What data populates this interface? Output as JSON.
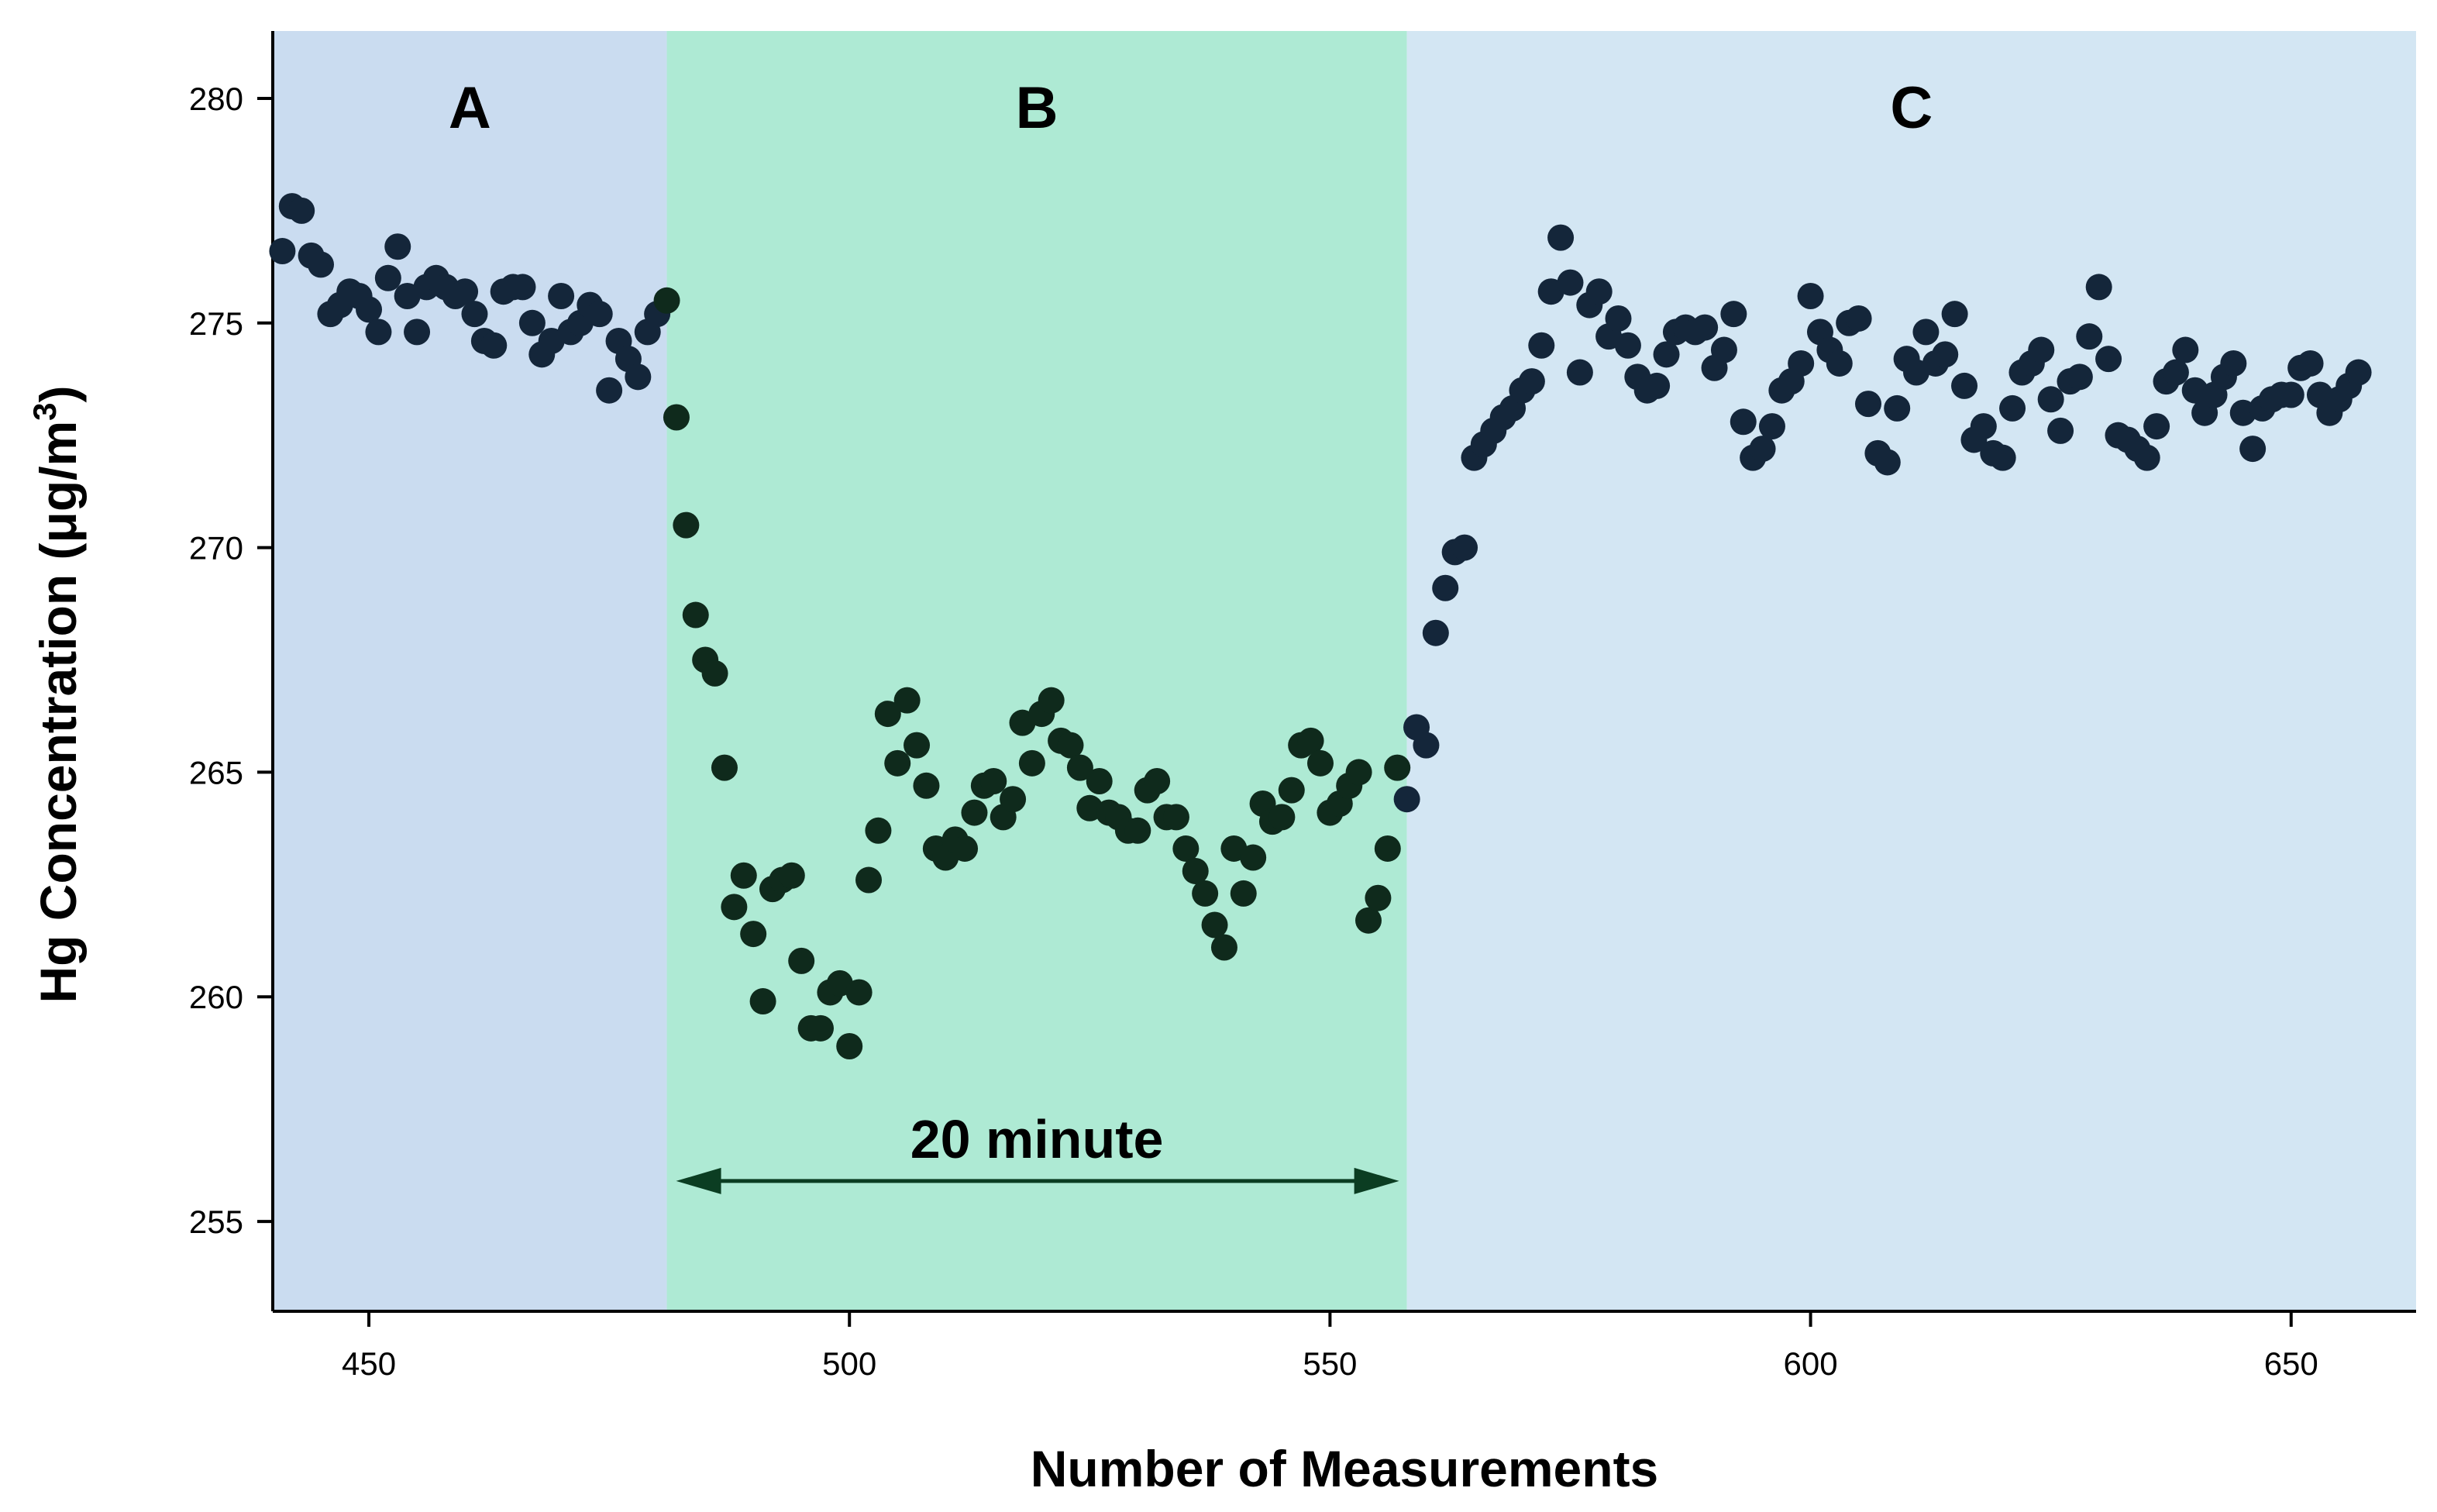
{
  "chart_data": {
    "type": "scatter",
    "title": "",
    "xlabel": "Number of Measurements",
    "ylabel_main": "Hg Concentration (μg/m",
    "ylabel_sup": "3",
    "ylabel_close": ")",
    "xlim": [
      440,
      663
    ],
    "ylim": [
      253,
      281.5
    ],
    "xticks": [
      450,
      500,
      550,
      600,
      650
    ],
    "yticks": [
      255,
      260,
      265,
      270,
      275,
      280
    ],
    "grid": false,
    "regions": [
      {
        "label": "A",
        "x_start": 440,
        "x_end": 481,
        "color": "#cadcf0"
      },
      {
        "label": "B",
        "x_start": 481,
        "x_end": 558,
        "color": "#aeead4"
      },
      {
        "label": "C",
        "x_start": 558,
        "x_end": 663,
        "color": "#d3e6f3"
      }
    ],
    "annotation": {
      "text": "20 minute",
      "x_start": 481,
      "x_end": 558,
      "y": 255.9
    },
    "series": [
      {
        "name": "Region A",
        "color": "#14263a",
        "points": [
          [
            441,
            276.6
          ],
          [
            442,
            277.6
          ],
          [
            443,
            277.5
          ],
          [
            444,
            276.5
          ],
          [
            445,
            276.3
          ],
          [
            446,
            275.2
          ],
          [
            447,
            275.4
          ],
          [
            448,
            275.7
          ],
          [
            449,
            275.6
          ],
          [
            450,
            275.3
          ],
          [
            451,
            274.8
          ],
          [
            452,
            276.0
          ],
          [
            453,
            276.7
          ],
          [
            454,
            275.6
          ],
          [
            455,
            274.8
          ],
          [
            456,
            275.8
          ],
          [
            457,
            276.0
          ],
          [
            458,
            275.8
          ],
          [
            459,
            275.6
          ],
          [
            460,
            275.7
          ],
          [
            461,
            275.2
          ],
          [
            462,
            274.6
          ],
          [
            463,
            274.5
          ],
          [
            464,
            275.7
          ],
          [
            465,
            275.8
          ],
          [
            466,
            275.8
          ],
          [
            467,
            275.0
          ],
          [
            468,
            274.3
          ],
          [
            469,
            274.6
          ],
          [
            470,
            275.6
          ],
          [
            471,
            274.8
          ],
          [
            472,
            275.0
          ],
          [
            473,
            275.4
          ],
          [
            474,
            275.2
          ],
          [
            475,
            273.5
          ],
          [
            476,
            274.6
          ],
          [
            477,
            274.2
          ],
          [
            478,
            273.8
          ],
          [
            479,
            274.8
          ],
          [
            480,
            275.2
          ]
        ]
      },
      {
        "name": "Region B",
        "color": "#0f2a1c",
        "points": [
          [
            481,
            275.5
          ],
          [
            482,
            272.9
          ],
          [
            483,
            270.5
          ],
          [
            484,
            268.5
          ],
          [
            485,
            267.5
          ],
          [
            486,
            267.2
          ],
          [
            487,
            265.1
          ],
          [
            488,
            262.0
          ],
          [
            489,
            262.7
          ],
          [
            490,
            261.4
          ],
          [
            491,
            259.9
          ],
          [
            492,
            262.4
          ],
          [
            493,
            262.6
          ],
          [
            494,
            262.7
          ],
          [
            495,
            260.8
          ],
          [
            496,
            259.3
          ],
          [
            497,
            259.3
          ],
          [
            498,
            260.1
          ],
          [
            499,
            260.3
          ],
          [
            500,
            258.9
          ],
          [
            501,
            260.1
          ],
          [
            502,
            262.6
          ],
          [
            503,
            263.7
          ],
          [
            504,
            266.3
          ],
          [
            505,
            265.2
          ],
          [
            506,
            266.6
          ],
          [
            507,
            265.6
          ],
          [
            508,
            264.7
          ],
          [
            509,
            263.3
          ],
          [
            510,
            263.1
          ],
          [
            511,
            263.5
          ],
          [
            512,
            263.3
          ],
          [
            513,
            264.1
          ],
          [
            514,
            264.7
          ],
          [
            515,
            264.8
          ],
          [
            516,
            264.0
          ],
          [
            517,
            264.4
          ],
          [
            518,
            266.1
          ],
          [
            519,
            265.2
          ],
          [
            520,
            266.3
          ],
          [
            521,
            266.6
          ],
          [
            522,
            265.7
          ],
          [
            523,
            265.6
          ],
          [
            524,
            265.1
          ],
          [
            525,
            264.2
          ],
          [
            526,
            264.8
          ],
          [
            527,
            264.1
          ],
          [
            528,
            264.0
          ],
          [
            529,
            263.7
          ],
          [
            530,
            263.7
          ],
          [
            531,
            264.6
          ],
          [
            532,
            264.8
          ],
          [
            533,
            264.0
          ],
          [
            534,
            264.0
          ],
          [
            535,
            263.3
          ],
          [
            536,
            262.8
          ],
          [
            537,
            262.3
          ],
          [
            538,
            261.6
          ],
          [
            539,
            261.1
          ],
          [
            540,
            263.3
          ],
          [
            541,
            262.3
          ],
          [
            542,
            263.1
          ],
          [
            543,
            264.3
          ],
          [
            544,
            263.9
          ],
          [
            545,
            264.0
          ],
          [
            546,
            264.6
          ],
          [
            547,
            265.6
          ],
          [
            548,
            265.7
          ],
          [
            549,
            265.2
          ],
          [
            550,
            264.1
          ],
          [
            551,
            264.3
          ],
          [
            552,
            264.7
          ],
          [
            553,
            265.0
          ],
          [
            554,
            261.7
          ],
          [
            555,
            262.2
          ],
          [
            556,
            263.3
          ],
          [
            557,
            265.1
          ]
        ]
      },
      {
        "name": "Region C",
        "color": "#14263a",
        "points": [
          [
            558,
            264.4
          ],
          [
            559,
            266.0
          ],
          [
            560,
            265.6
          ],
          [
            561,
            268.1
          ],
          [
            562,
            269.1
          ],
          [
            563,
            269.9
          ],
          [
            564,
            270.0
          ],
          [
            565,
            272.0
          ],
          [
            566,
            272.3
          ],
          [
            567,
            272.6
          ],
          [
            568,
            272.9
          ],
          [
            569,
            273.1
          ],
          [
            570,
            273.5
          ],
          [
            571,
            273.7
          ],
          [
            572,
            274.5
          ],
          [
            573,
            275.7
          ],
          [
            574,
            276.9
          ],
          [
            575,
            275.9
          ],
          [
            576,
            273.9
          ],
          [
            577,
            275.4
          ],
          [
            578,
            275.7
          ],
          [
            579,
            274.7
          ],
          [
            580,
            275.1
          ],
          [
            581,
            274.5
          ],
          [
            582,
            273.8
          ],
          [
            583,
            273.5
          ],
          [
            584,
            273.6
          ],
          [
            585,
            274.3
          ],
          [
            586,
            274.8
          ],
          [
            587,
            274.9
          ],
          [
            588,
            274.8
          ],
          [
            589,
            274.9
          ],
          [
            590,
            274.0
          ],
          [
            591,
            274.4
          ],
          [
            592,
            275.2
          ],
          [
            593,
            272.8
          ],
          [
            594,
            272.0
          ],
          [
            595,
            272.2
          ],
          [
            596,
            272.7
          ],
          [
            597,
            273.5
          ],
          [
            598,
            273.7
          ],
          [
            599,
            274.1
          ],
          [
            600,
            275.6
          ],
          [
            601,
            274.8
          ],
          [
            602,
            274.4
          ],
          [
            603,
            274.1
          ],
          [
            604,
            275.0
          ],
          [
            605,
            275.1
          ],
          [
            606,
            273.2
          ],
          [
            607,
            272.1
          ],
          [
            608,
            271.9
          ],
          [
            609,
            273.1
          ],
          [
            610,
            274.2
          ],
          [
            611,
            273.9
          ],
          [
            612,
            274.8
          ],
          [
            613,
            274.1
          ],
          [
            614,
            274.3
          ],
          [
            615,
            275.2
          ],
          [
            616,
            273.6
          ],
          [
            617,
            272.4
          ],
          [
            618,
            272.7
          ],
          [
            619,
            272.1
          ],
          [
            620,
            272.0
          ],
          [
            621,
            273.1
          ],
          [
            622,
            273.9
          ],
          [
            623,
            274.1
          ],
          [
            624,
            274.4
          ],
          [
            625,
            273.3
          ],
          [
            626,
            272.6
          ],
          [
            627,
            273.7
          ],
          [
            628,
            273.8
          ],
          [
            629,
            274.7
          ],
          [
            630,
            275.8
          ],
          [
            631,
            274.2
          ],
          [
            632,
            272.5
          ],
          [
            633,
            272.4
          ],
          [
            634,
            272.2
          ],
          [
            635,
            272.0
          ],
          [
            636,
            272.7
          ],
          [
            637,
            273.7
          ],
          [
            638,
            273.9
          ],
          [
            639,
            274.4
          ],
          [
            640,
            273.5
          ],
          [
            641,
            273.0
          ],
          [
            642,
            273.4
          ],
          [
            643,
            273.8
          ],
          [
            644,
            274.1
          ],
          [
            645,
            273.0
          ],
          [
            646,
            272.2
          ],
          [
            647,
            273.1
          ],
          [
            648,
            273.3
          ],
          [
            649,
            273.4
          ],
          [
            650,
            273.4
          ],
          [
            651,
            274.0
          ],
          [
            652,
            274.1
          ],
          [
            653,
            273.4
          ],
          [
            654,
            273.0
          ],
          [
            655,
            273.3
          ],
          [
            656,
            273.6
          ],
          [
            657,
            273.9
          ]
        ]
      }
    ]
  }
}
